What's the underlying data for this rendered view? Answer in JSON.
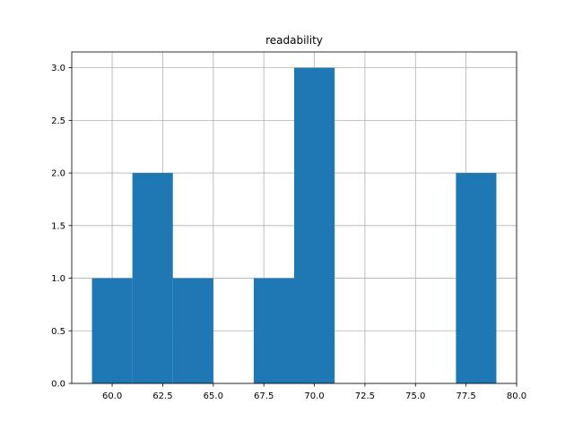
{
  "chart_data": {
    "type": "bar",
    "title": "readability",
    "xlabel": "",
    "ylabel": "",
    "xlim": [
      58.0,
      80.0
    ],
    "ylim": [
      0.0,
      3.15
    ],
    "grid": true,
    "bar_color": "#1f77b4",
    "grid_color": "#b0b0b0",
    "bins": [
      {
        "x0": 59.0,
        "x1": 61.0,
        "count": 1
      },
      {
        "x0": 61.0,
        "x1": 63.0,
        "count": 2
      },
      {
        "x0": 63.0,
        "x1": 65.0,
        "count": 1
      },
      {
        "x0": 65.0,
        "x1": 67.0,
        "count": 0
      },
      {
        "x0": 67.0,
        "x1": 69.0,
        "count": 1
      },
      {
        "x0": 69.0,
        "x1": 71.0,
        "count": 3
      },
      {
        "x0": 71.0,
        "x1": 73.0,
        "count": 0
      },
      {
        "x0": 73.0,
        "x1": 75.0,
        "count": 0
      },
      {
        "x0": 75.0,
        "x1": 77.0,
        "count": 0
      },
      {
        "x0": 77.0,
        "x1": 79.0,
        "count": 2
      }
    ],
    "xticks": [
      {
        "value": 60.0,
        "label": "60.0"
      },
      {
        "value": 62.5,
        "label": "62.5"
      },
      {
        "value": 65.0,
        "label": "65.0"
      },
      {
        "value": 67.5,
        "label": "67.5"
      },
      {
        "value": 70.0,
        "label": "70.0"
      },
      {
        "value": 72.5,
        "label": "72.5"
      },
      {
        "value": 75.0,
        "label": "75.0"
      },
      {
        "value": 77.5,
        "label": "77.5"
      },
      {
        "value": 80.0,
        "label": "80.0"
      }
    ],
    "yticks": [
      {
        "value": 0.0,
        "label": "0.0"
      },
      {
        "value": 0.5,
        "label": "0.5"
      },
      {
        "value": 1.0,
        "label": "1.0"
      },
      {
        "value": 1.5,
        "label": "1.5"
      },
      {
        "value": 2.0,
        "label": "2.0"
      },
      {
        "value": 2.5,
        "label": "2.5"
      },
      {
        "value": 3.0,
        "label": "3.0"
      }
    ]
  }
}
